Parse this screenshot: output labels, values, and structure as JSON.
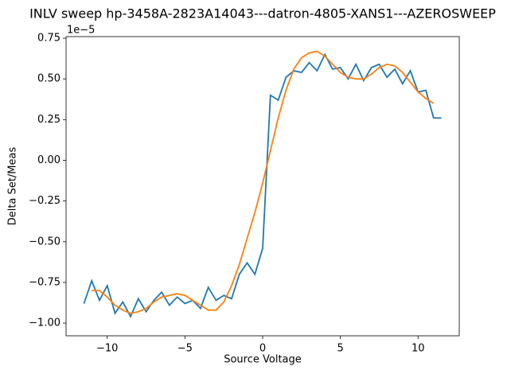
{
  "chart_data": {
    "type": "line",
    "title": "INLV sweep hp-3458A-2823A14043---datron-4805-XANS1---AZEROSWEEP",
    "x_label": "Source Voltage",
    "y_label": "Delta Set/Meas",
    "y_offset_text": "1e−5",
    "xlim": [
      -12.65,
      12.65
    ],
    "xticks": [
      {
        "value": -10,
        "label": "−10"
      },
      {
        "value": -5,
        "label": "−5"
      },
      0,
      5,
      10
    ],
    "ylim": [
      -1.078,
      0.76
    ],
    "yticks": [
      {
        "value": -1,
        "label": "−1.00"
      },
      {
        "value": -0.75,
        "label": "−0.75"
      },
      {
        "value": -0.5,
        "label": "−0.50"
      },
      {
        "value": -0.25,
        "label": "−0.25"
      },
      {
        "value": 0,
        "label": "0.00"
      },
      0.25,
      {
        "value": 0.5,
        "label": "0.50"
      },
      0.75
    ],
    "series": [
      {
        "color": "#1f77b4",
        "x": [
          -11.5,
          -11,
          -10.5,
          -10,
          -9.5,
          -9,
          -8.5,
          -8,
          -7.5,
          -7,
          -6.5,
          -6,
          -5.5,
          -5,
          -4.5,
          -4,
          -3.5,
          -3,
          -2.5,
          -2,
          -1.5,
          -1,
          -0.5,
          0,
          0.5,
          1,
          1.5,
          2,
          2.5,
          3,
          3.5,
          4,
          4.5,
          5,
          5.5,
          6,
          6.5,
          7,
          7.5,
          8,
          8.5,
          9,
          9.5,
          10,
          10.5,
          11,
          11.5
        ],
        "values": [
          -0.88,
          -0.74,
          -0.86,
          -0.77,
          -0.94,
          -0.87,
          -0.96,
          -0.85,
          -0.93,
          -0.86,
          -0.81,
          -0.89,
          -0.84,
          -0.88,
          -0.86,
          -0.91,
          -0.78,
          -0.86,
          -0.83,
          -0.85,
          -0.7,
          -0.63,
          -0.7,
          -0.54,
          0.4,
          0.37,
          0.51,
          0.55,
          0.54,
          0.6,
          0.55,
          0.65,
          0.56,
          0.57,
          0.5,
          0.59,
          0.49,
          0.57,
          0.59,
          0.51,
          0.56,
          0.47,
          0.55,
          0.42,
          0.43,
          0.26,
          0.26
        ]
      },
      {
        "color": "#ff7f0e",
        "x": [
          -11,
          -10.5,
          -10,
          -9.5,
          -9,
          -8.5,
          -8,
          -7.5,
          -7,
          -6.5,
          -6,
          -5.5,
          -5,
          -4.5,
          -4,
          -3.5,
          -3,
          -2.5,
          -2,
          -1.5,
          -1,
          -0.5,
          0,
          0.5,
          1,
          1.5,
          2,
          2.5,
          3,
          3.5,
          4,
          4.5,
          5,
          5.5,
          6,
          6.5,
          7,
          7.5,
          8,
          8.5,
          9,
          9.5,
          10,
          10.5,
          11
        ],
        "values": [
          -0.8,
          -0.8,
          -0.84,
          -0.89,
          -0.92,
          -0.94,
          -0.93,
          -0.91,
          -0.87,
          -0.84,
          -0.83,
          -0.82,
          -0.83,
          -0.86,
          -0.89,
          -0.92,
          -0.92,
          -0.87,
          -0.77,
          -0.64,
          -0.48,
          -0.32,
          -0.14,
          0.06,
          0.26,
          0.43,
          0.56,
          0.63,
          0.66,
          0.67,
          0.64,
          0.59,
          0.54,
          0.51,
          0.5,
          0.5,
          0.53,
          0.57,
          0.59,
          0.58,
          0.54,
          0.48,
          0.42,
          0.38,
          0.35
        ]
      }
    ]
  }
}
